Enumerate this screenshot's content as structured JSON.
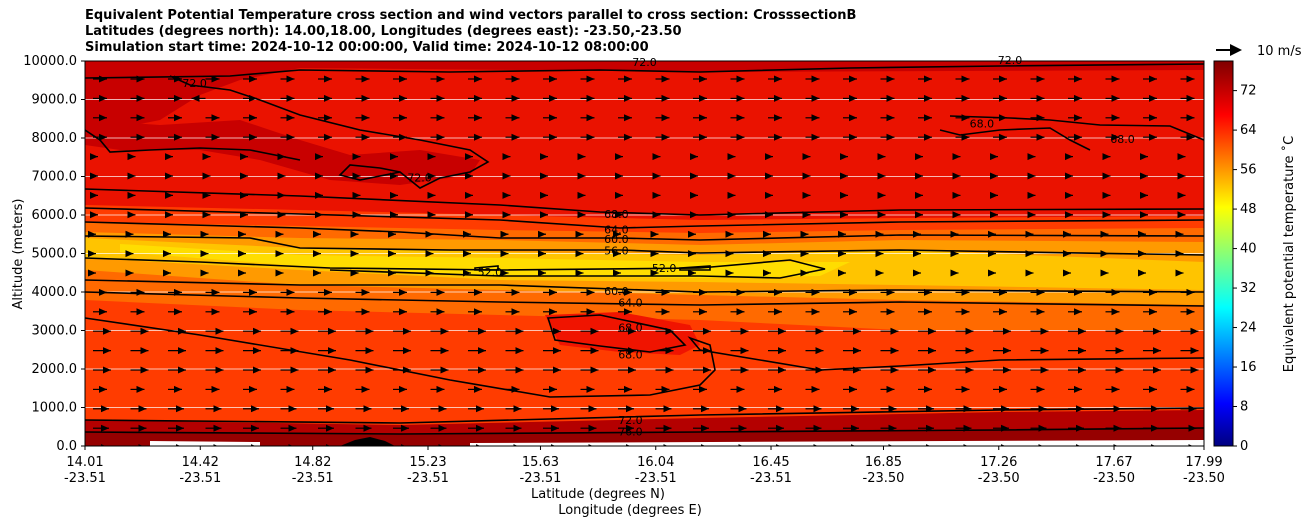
{
  "chart_data": {
    "type": "heatmap",
    "title_lines": [
      "Equivalent Potential Temperature cross section and wind vectors parallel to cross section: CrosssectionB",
      "Latitudes (degrees north): 14.00,18.00, Longitudes (degrees east): -23.50,-23.50",
      "Simulation start time: 2024-10-12 00:00:00, Valid time: 2024-10-12 08:00:00"
    ],
    "ylabel": "Altitude (meters)",
    "xlabel_lines": [
      "Latitude (degrees N)",
      "Longitude (degrees E)"
    ],
    "colorbar_label": "Equivalent potential temperature ˚C",
    "quiver_key_label": "10 m/s",
    "ylim": [
      0,
      10000
    ],
    "yticks": [
      "0.0",
      "1000.0",
      "2000.0",
      "3000.0",
      "4000.0",
      "5000.0",
      "6000.0",
      "7000.0",
      "8000.0",
      "9000.0",
      "10000.0"
    ],
    "xticks": [
      {
        "lat": "14.01",
        "lon": "-23.51"
      },
      {
        "lat": "14.42",
        "lon": "-23.51"
      },
      {
        "lat": "14.82",
        "lon": "-23.51"
      },
      {
        "lat": "15.23",
        "lon": "-23.51"
      },
      {
        "lat": "15.63",
        "lon": "-23.51"
      },
      {
        "lat": "16.04",
        "lon": "-23.51"
      },
      {
        "lat": "16.45",
        "lon": "-23.51"
      },
      {
        "lat": "16.85",
        "lon": "-23.50"
      },
      {
        "lat": "17.26",
        "lon": "-23.50"
      },
      {
        "lat": "17.67",
        "lon": "-23.50"
      },
      {
        "lat": "17.99",
        "lon": "-23.50"
      }
    ],
    "colorbar_range": [
      0,
      78
    ],
    "colorbar_ticks": [
      "0",
      "8",
      "16",
      "24",
      "32",
      "40",
      "48",
      "56",
      "64",
      "72"
    ],
    "contour_levels_labeled": [
      "52.0",
      "56.0",
      "60.0",
      "64.0",
      "68.0",
      "72.0",
      "76.0"
    ],
    "contour_labels": [
      {
        "text": "72.0",
        "x_lat": 16.0,
        "alt": 9950
      },
      {
        "text": "72.0",
        "x_lat": 14.4,
        "alt": 9400
      },
      {
        "text": "72.0",
        "x_lat": 15.2,
        "alt": 6950
      },
      {
        "text": "72.0",
        "x_lat": 17.3,
        "alt": 10000
      },
      {
        "text": "68.0",
        "x_lat": 17.2,
        "alt": 8350
      },
      {
        "text": "68.0",
        "x_lat": 17.7,
        "alt": 7950
      },
      {
        "text": "68.0",
        "x_lat": 15.9,
        "alt": 6000
      },
      {
        "text": "64.0",
        "x_lat": 15.9,
        "alt": 5600
      },
      {
        "text": "60.0",
        "x_lat": 15.9,
        "alt": 5350
      },
      {
        "text": "56.0",
        "x_lat": 15.9,
        "alt": 5050
      },
      {
        "text": "52.0",
        "x_lat": 15.45,
        "alt": 4500
      },
      {
        "text": "52.0",
        "x_lat": 16.07,
        "alt": 4600
      },
      {
        "text": "60.0",
        "x_lat": 15.9,
        "alt": 4000
      },
      {
        "text": "64.0",
        "x_lat": 15.95,
        "alt": 3700
      },
      {
        "text": "68.0",
        "x_lat": 15.95,
        "alt": 3050
      },
      {
        "text": "68.0",
        "x_lat": 15.95,
        "alt": 2350
      },
      {
        "text": "72.0",
        "x_lat": 15.95,
        "alt": 650
      },
      {
        "text": "76.0",
        "x_lat": 15.95,
        "alt": 350
      }
    ],
    "wind_vectors": "mostly positive (pointing toward higher latitude), parallel to cross section",
    "grid": "horizontal lines on",
    "colormap": "jet"
  }
}
